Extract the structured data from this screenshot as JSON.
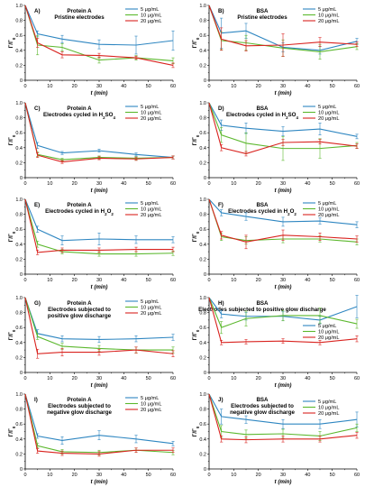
{
  "colors": {
    "s5": "#2e86c1",
    "s10": "#5cb82e",
    "s20": "#d9231f"
  },
  "chart_data": [
    {
      "type": "line",
      "panel": "A)",
      "title": [
        "Protein A",
        "Pristine electrodes"
      ],
      "x": [
        0,
        5,
        15,
        30,
        45,
        60
      ],
      "xlabel": "t (min)",
      "ylabel": "Γ/Γ0",
      "xlim": [
        0,
        60
      ],
      "ylim": [
        0,
        1.0
      ],
      "xticks": [
        0,
        10,
        20,
        30,
        40,
        50,
        60
      ],
      "yticks": [
        "0",
        "0.2",
        "0.4",
        "0.6",
        "0.8",
        "1.0"
      ],
      "legend": "top-right",
      "series": [
        {
          "name": "5 μg/mL",
          "color": "#2e86c1",
          "values": [
            1.0,
            0.62,
            0.55,
            0.48,
            0.47,
            0.53
          ],
          "err": [
            0,
            0.04,
            0.05,
            0.06,
            0.12,
            0.13
          ]
        },
        {
          "name": "10 μg/mL",
          "color": "#5cb82e",
          "values": [
            1.0,
            0.47,
            0.44,
            0.27,
            0.3,
            0.26
          ],
          "err": [
            0,
            0.13,
            0.05,
            0.04,
            0.03,
            0.04
          ]
        },
        {
          "name": "20 μg/mL",
          "color": "#d9231f",
          "values": [
            1.0,
            0.5,
            0.34,
            0.33,
            0.3,
            0.2
          ],
          "err": [
            0,
            0.06,
            0.04,
            0.03,
            0.02,
            0.03
          ]
        }
      ]
    },
    {
      "type": "line",
      "panel": "B)",
      "title": [
        "BSA",
        "Pristine electrodes"
      ],
      "x": [
        0,
        5,
        15,
        30,
        45,
        60
      ],
      "xlabel": "t (min)",
      "ylabel": "Γ/Γ0",
      "xlim": [
        0,
        60
      ],
      "ylim": [
        0,
        1.0
      ],
      "xticks": [
        0,
        10,
        20,
        30,
        40,
        50,
        60
      ],
      "yticks": [
        "0",
        "0.2",
        "0.4",
        "0.6",
        "0.8",
        "1.0"
      ],
      "legend": "top-right",
      "series": [
        {
          "name": "5 μg/mL",
          "color": "#2e86c1",
          "values": [
            1.0,
            0.63,
            0.66,
            0.44,
            0.4,
            0.52
          ],
          "err": [
            0,
            0.2,
            0.1,
            0.06,
            0.05,
            0.04
          ]
        },
        {
          "name": "10 μg/mL",
          "color": "#5cb82e",
          "values": [
            1.0,
            0.53,
            0.5,
            0.43,
            0.38,
            0.45
          ],
          "err": [
            0,
            0.12,
            0.1,
            0.11,
            0.1,
            0.04
          ]
        },
        {
          "name": "20 μg/mL",
          "color": "#d9231f",
          "values": [
            1.0,
            0.55,
            0.46,
            0.47,
            0.51,
            0.48
          ],
          "err": [
            0,
            0.15,
            0.07,
            0.15,
            0.06,
            0.03
          ]
        }
      ]
    },
    {
      "type": "line",
      "panel": "C)",
      "title": [
        "Protein A",
        "Electrodes cycled in H2SO4"
      ],
      "x": [
        0,
        5,
        15,
        30,
        45,
        60
      ],
      "xlabel": "t (min)",
      "ylabel": "Γ/Γ0",
      "xlim": [
        0,
        60
      ],
      "ylim": [
        0,
        1.0
      ],
      "xticks": [
        0,
        10,
        20,
        30,
        40,
        50,
        60
      ],
      "yticks": [
        "0",
        "0.2",
        "0.4",
        "0.6",
        "0.8",
        "1.0"
      ],
      "legend": "top-right",
      "series": [
        {
          "name": "5 μg/mL",
          "color": "#2e86c1",
          "values": [
            1.0,
            0.43,
            0.33,
            0.36,
            0.31,
            0.27
          ],
          "err": [
            0,
            0.04,
            0.02,
            0.02,
            0.02,
            0.02
          ]
        },
        {
          "name": "10 μg/mL",
          "color": "#5cb82e",
          "values": [
            1.0,
            0.31,
            0.24,
            0.27,
            0.26,
            0.27
          ],
          "err": [
            0,
            0.03,
            0.02,
            0.02,
            0.02,
            0.02
          ]
        },
        {
          "name": "20 μg/mL",
          "color": "#d9231f",
          "values": [
            1.0,
            0.3,
            0.21,
            0.26,
            0.25,
            0.27
          ],
          "err": [
            0,
            0.03,
            0.02,
            0.02,
            0.02,
            0.02
          ]
        }
      ]
    },
    {
      "type": "line",
      "panel": "D)",
      "title": [
        "BSA",
        "Electrodes cycled in H2SO4"
      ],
      "x": [
        0,
        5,
        15,
        30,
        45,
        60
      ],
      "xlabel": "t (min)",
      "ylabel": "Γ/Γ0",
      "xlim": [
        0,
        60
      ],
      "ylim": [
        0,
        1.0
      ],
      "xticks": [
        0,
        10,
        20,
        30,
        40,
        50,
        60
      ],
      "yticks": [
        "0",
        "0.2",
        "0.4",
        "0.6",
        "0.8",
        "1.0"
      ],
      "legend": "top-right",
      "series": [
        {
          "name": "5 μg/mL",
          "color": "#2e86c1",
          "values": [
            1.0,
            0.7,
            0.66,
            0.62,
            0.65,
            0.55
          ],
          "err": [
            0,
            0.07,
            0.07,
            0.06,
            0.08,
            0.03
          ]
        },
        {
          "name": "10 μg/mL",
          "color": "#5cb82e",
          "values": [
            1.0,
            0.57,
            0.46,
            0.39,
            0.39,
            0.43
          ],
          "err": [
            0,
            0.1,
            0.14,
            0.16,
            0.13,
            0.04
          ]
        },
        {
          "name": "20 μg/mL",
          "color": "#d9231f",
          "values": [
            1.0,
            0.4,
            0.32,
            0.47,
            0.48,
            0.42
          ],
          "err": [
            0,
            0.04,
            0.03,
            0.04,
            0.03,
            0.03
          ]
        }
      ]
    },
    {
      "type": "line",
      "panel": "E)",
      "title": [
        "Protein A",
        "Electrodes cycled in H2O2"
      ],
      "x": [
        0,
        5,
        15,
        30,
        45,
        60
      ],
      "xlabel": "t (min)",
      "ylabel": "Γ/Γ0",
      "xlim": [
        0,
        60
      ],
      "ylim": [
        0,
        1.0
      ],
      "xticks": [
        0,
        10,
        20,
        30,
        40,
        50,
        60
      ],
      "yticks": [
        "0",
        "0.2",
        "0.4",
        "0.6",
        "0.8",
        "1.0"
      ],
      "legend": "top-right",
      "series": [
        {
          "name": "5 μg/mL",
          "color": "#2e86c1",
          "values": [
            1.0,
            0.6,
            0.45,
            0.47,
            0.46,
            0.46
          ],
          "err": [
            0,
            0.04,
            0.06,
            0.08,
            0.05,
            0.04
          ]
        },
        {
          "name": "10 μg/mL",
          "color": "#5cb82e",
          "values": [
            1.0,
            0.4,
            0.3,
            0.27,
            0.27,
            0.28
          ],
          "err": [
            0,
            0.04,
            0.03,
            0.03,
            0.03,
            0.03
          ]
        },
        {
          "name": "20 μg/mL",
          "color": "#d9231f",
          "values": [
            1.0,
            0.29,
            0.32,
            0.32,
            0.33,
            0.33
          ],
          "err": [
            0,
            0.03,
            0.03,
            0.03,
            0.03,
            0.03
          ]
        }
      ]
    },
    {
      "type": "line",
      "panel": "F)",
      "title": [
        "BSA",
        "Electrodes cycled in H2O2"
      ],
      "x": [
        0,
        5,
        15,
        30,
        45,
        60
      ],
      "xlabel": "t (min)",
      "ylabel": "Γ/Γ0",
      "xlim": [
        0,
        60
      ],
      "ylim": [
        0,
        1.0
      ],
      "xticks": [
        0,
        10,
        20,
        30,
        40,
        50,
        60
      ],
      "yticks": [
        "0",
        "0.2",
        "0.4",
        "0.6",
        "0.8",
        "1.0"
      ],
      "legend": "top-right",
      "series": [
        {
          "name": "5 μg/mL",
          "color": "#2e86c1",
          "values": [
            1.0,
            0.82,
            0.77,
            0.7,
            0.71,
            0.66
          ],
          "err": [
            0,
            0.04,
            0.05,
            0.06,
            0.04,
            0.04
          ]
        },
        {
          "name": "10 μg/mL",
          "color": "#5cb82e",
          "values": [
            1.0,
            0.5,
            0.45,
            0.47,
            0.47,
            0.43
          ],
          "err": [
            0,
            0.05,
            0.05,
            0.05,
            0.04,
            0.04
          ]
        },
        {
          "name": "20 μg/mL",
          "color": "#d9231f",
          "values": [
            1.0,
            0.52,
            0.43,
            0.52,
            0.5,
            0.47
          ],
          "err": [
            0,
            0.05,
            0.09,
            0.07,
            0.05,
            0.04
          ]
        }
      ]
    },
    {
      "type": "line",
      "panel": "G)",
      "title": [
        "Protein A",
        "Electrodes subjected to",
        "positive glow discharge"
      ],
      "x": [
        0,
        5,
        15,
        30,
        45,
        60
      ],
      "xlabel": "t (min)",
      "ylabel": "Γ/Γ0",
      "xlim": [
        0,
        60
      ],
      "ylim": [
        0,
        1.0
      ],
      "xticks": [
        0,
        10,
        20,
        30,
        40,
        50,
        60
      ],
      "yticks": [
        "0",
        "0.2",
        "0.4",
        "0.6",
        "0.8",
        "1.0"
      ],
      "legend": "top-right",
      "series": [
        {
          "name": "5 μg/mL",
          "color": "#2e86c1",
          "values": [
            1.0,
            0.52,
            0.45,
            0.44,
            0.45,
            0.47
          ],
          "err": [
            0,
            0.05,
            0.04,
            0.04,
            0.04,
            0.04
          ]
        },
        {
          "name": "10 μg/mL",
          "color": "#5cb82e",
          "values": [
            1.0,
            0.48,
            0.35,
            0.32,
            0.3,
            0.3
          ],
          "err": [
            0,
            0.04,
            0.04,
            0.04,
            0.04,
            0.04
          ]
        },
        {
          "name": "20 μg/mL",
          "color": "#d9231f",
          "values": [
            1.0,
            0.25,
            0.27,
            0.27,
            0.3,
            0.25
          ],
          "err": [
            0,
            0.06,
            0.05,
            0.04,
            0.04,
            0.04
          ]
        }
      ]
    },
    {
      "type": "line",
      "panel": "H)",
      "title": [
        "BSA",
        "Electrodes subjected to positive glow discharge"
      ],
      "x": [
        0,
        5,
        15,
        30,
        45,
        60
      ],
      "xlabel": "t (min)",
      "ylabel": "Γ/Γ0",
      "xlim": [
        0,
        60
      ],
      "ylim": [
        0,
        1.0
      ],
      "xticks": [
        0,
        10,
        20,
        30,
        40,
        50,
        60
      ],
      "yticks": [
        "0",
        "0.2",
        "0.4",
        "0.6",
        "0.8",
        "1.0"
      ],
      "legend": "bottom-right",
      "series": [
        {
          "name": "5 μg/mL",
          "color": "#2e86c1",
          "values": [
            1.0,
            0.78,
            0.75,
            0.75,
            0.7,
            0.88
          ],
          "err": [
            0,
            0.05,
            0.05,
            0.06,
            0.05,
            0.15
          ]
        },
        {
          "name": "10 μg/mL",
          "color": "#5cb82e",
          "values": [
            1.0,
            0.6,
            0.72,
            0.76,
            0.76,
            0.65
          ],
          "err": [
            0,
            0.08,
            0.1,
            0.07,
            0.1,
            0.06
          ]
        },
        {
          "name": "20 μg/mL",
          "color": "#d9231f",
          "values": [
            1.0,
            0.4,
            0.41,
            0.42,
            0.4,
            0.45
          ],
          "err": [
            0,
            0.03,
            0.03,
            0.03,
            0.03,
            0.04
          ]
        }
      ]
    },
    {
      "type": "line",
      "panel": "I)",
      "title": [
        "Protein A",
        "Electrodes subjected to",
        "negative glow discharge"
      ],
      "x": [
        0,
        5,
        15,
        30,
        45,
        60
      ],
      "xlabel": "t (min)",
      "ylabel": "Γ/Γ0",
      "xlim": [
        0,
        60
      ],
      "ylim": [
        0,
        1.0
      ],
      "xticks": [
        0,
        10,
        20,
        30,
        40,
        50,
        60
      ],
      "yticks": [
        "0",
        "0.2",
        "0.4",
        "0.6",
        "0.8",
        "1.0"
      ],
      "legend": "top-right",
      "series": [
        {
          "name": "5 μg/mL",
          "color": "#2e86c1",
          "values": [
            1.0,
            0.44,
            0.38,
            0.45,
            0.4,
            0.34
          ],
          "err": [
            0,
            0.03,
            0.05,
            0.06,
            0.05,
            0.03
          ]
        },
        {
          "name": "10 μg/mL",
          "color": "#5cb82e",
          "values": [
            1.0,
            0.31,
            0.23,
            0.22,
            0.25,
            0.22
          ],
          "err": [
            0,
            0.03,
            0.03,
            0.03,
            0.03,
            0.03
          ]
        },
        {
          "name": "20 μg/mL",
          "color": "#d9231f",
          "values": [
            1.0,
            0.24,
            0.21,
            0.2,
            0.25,
            0.25
          ],
          "err": [
            0,
            0.03,
            0.03,
            0.03,
            0.03,
            0.03
          ]
        }
      ]
    },
    {
      "type": "line",
      "panel": "J)",
      "title": [
        "BSA",
        "Electrodes subjected to",
        "negative glow discharge"
      ],
      "x": [
        0,
        5,
        15,
        30,
        45,
        60
      ],
      "xlabel": "t (min)",
      "ylabel": "Γ/Γ0",
      "xlim": [
        0,
        60
      ],
      "ylim": [
        0,
        1.0
      ],
      "xticks": [
        0,
        10,
        20,
        30,
        40,
        50,
        60
      ],
      "yticks": [
        "0",
        "0.2",
        "0.4",
        "0.6",
        "0.8",
        "1.0"
      ],
      "legend": "right",
      "series": [
        {
          "name": "5 μg/mL",
          "color": "#2e86c1",
          "values": [
            1.0,
            0.7,
            0.66,
            0.6,
            0.6,
            0.66
          ],
          "err": [
            0,
            0.1,
            0.05,
            0.06,
            0.06,
            0.1
          ]
        },
        {
          "name": "10 μg/mL",
          "color": "#5cb82e",
          "values": [
            1.0,
            0.5,
            0.46,
            0.47,
            0.44,
            0.55
          ],
          "err": [
            0,
            0.08,
            0.06,
            0.06,
            0.06,
            0.05
          ]
        },
        {
          "name": "20 μg/mL",
          "color": "#d9231f",
          "values": [
            1.0,
            0.4,
            0.39,
            0.4,
            0.4,
            0.45
          ],
          "err": [
            0,
            0.04,
            0.04,
            0.04,
            0.04,
            0.04
          ]
        }
      ]
    }
  ]
}
